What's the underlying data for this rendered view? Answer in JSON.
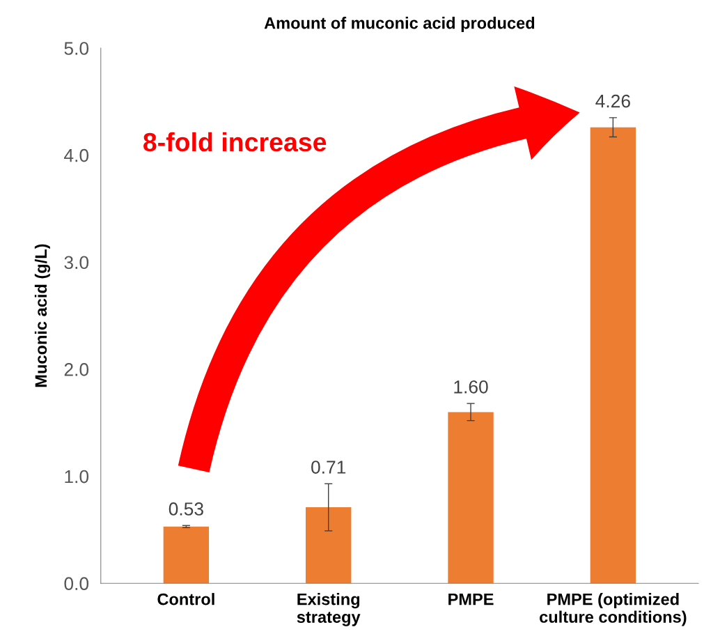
{
  "chart_data": {
    "type": "bar",
    "title": "Amount of muconic acid produced",
    "ylabel": "Muconic acid (g/L)",
    "categories": [
      "Control",
      "Existing\nstrategy",
      "PMPE",
      "PMPE (optimized\nculture conditions)"
    ],
    "values": [
      0.53,
      0.71,
      1.6,
      4.26
    ],
    "errors": [
      0.01,
      0.22,
      0.08,
      0.09
    ],
    "color": "#ed7d31",
    "value_labels": [
      "0.53",
      "0.71",
      "1.60",
      "4.26"
    ],
    "ylim": [
      0,
      5
    ],
    "yticks": [
      {
        "value": 0,
        "label": "0.0"
      },
      {
        "value": 1,
        "label": "1.0"
      },
      {
        "value": 2,
        "label": "2.0"
      },
      {
        "value": 3,
        "label": "3.0"
      },
      {
        "value": 4,
        "label": "4.0"
      },
      {
        "value": 5,
        "label": "5.0"
      }
    ],
    "grid": false,
    "annotations": [
      "8-fold increase"
    ]
  }
}
